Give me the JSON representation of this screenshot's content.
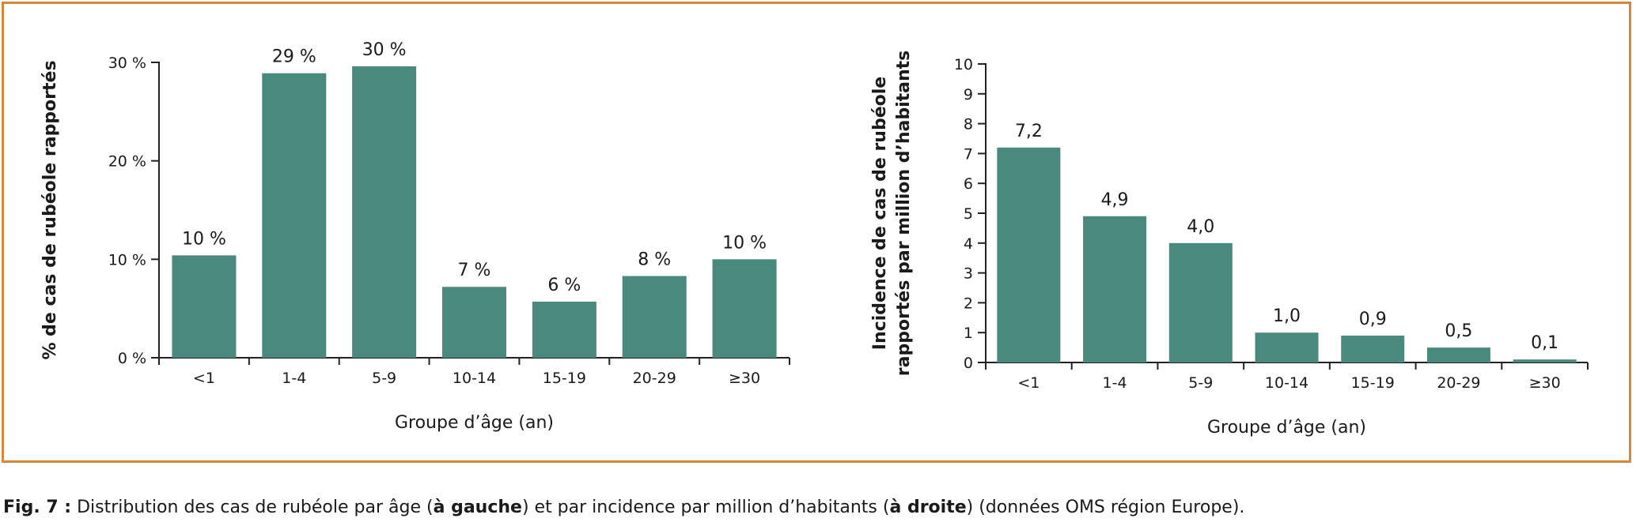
{
  "colors": {
    "bar": "#4a8a7e",
    "frame": "#d4893a",
    "axis": "#222222"
  },
  "chart_data": [
    {
      "type": "bar",
      "title": "",
      "xlabel": "Groupe d’âge (an)",
      "ylabel": "% de cas de rubéole rapportés",
      "categories": [
        "<1",
        "1-4",
        "5-9",
        "10-14",
        "15-19",
        "20-29",
        "≥30"
      ],
      "values": [
        10,
        29,
        30,
        7,
        6,
        8,
        10
      ],
      "heights": [
        10.4,
        28.9,
        29.6,
        7.2,
        5.7,
        8.3,
        10.0
      ],
      "value_labels": [
        "10 %",
        "29 %",
        "30 %",
        "7 %",
        "6 %",
        "8 %",
        "10 %"
      ],
      "ylim": [
        0,
        30
      ],
      "yticks": [
        0,
        10,
        20,
        30
      ],
      "ytick_labels": [
        "0 %",
        "10 %",
        "20 %",
        "30 %"
      ],
      "grid": false,
      "legend": "none"
    },
    {
      "type": "bar",
      "title": "",
      "xlabel": "Groupe d’âge (an)",
      "ylabel_lines": [
        "Incidence de cas de rubéole",
        "rapportés par million d’habitants"
      ],
      "categories": [
        "<1",
        "1-4",
        "5-9",
        "10-14",
        "15-19",
        "20-29",
        "≥30"
      ],
      "values": [
        7.2,
        4.9,
        4.0,
        1.0,
        0.9,
        0.5,
        0.1
      ],
      "value_labels": [
        "7,2",
        "4,9",
        "4,0",
        "1,0",
        "0,9",
        "0,5",
        "0,1"
      ],
      "ylim": [
        0,
        10
      ],
      "yticks": [
        0,
        1,
        2,
        3,
        4,
        5,
        6,
        7,
        8,
        9,
        10
      ],
      "ytick_labels": [
        "0",
        "1",
        "2",
        "3",
        "4",
        "5",
        "6",
        "7",
        "8",
        "9",
        "10"
      ],
      "grid": false,
      "legend": "none"
    }
  ],
  "caption": {
    "label": "Fig. 7 :",
    "text1": " Distribution des cas de rubéole par âge (",
    "bold1": "à gauche",
    "text2": ") et par incidence par million d’habitants (",
    "bold2": "à droite",
    "text3": ") (données OMS région Europe)."
  }
}
